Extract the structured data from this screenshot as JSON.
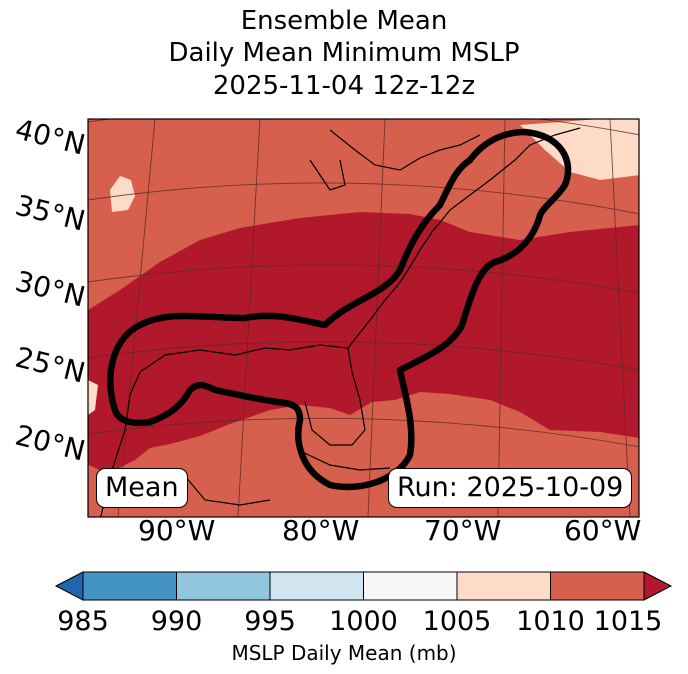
{
  "title_lines": [
    "Ensemble Mean",
    "Daily Mean Minimum MSLP",
    "2025-11-04 12z-12z"
  ],
  "lat_labels": [
    "40°N",
    "35°N",
    "30°N",
    "25°N",
    "20°N"
  ],
  "lon_labels": [
    "90°W",
    "80°W",
    "70°W",
    "60°W"
  ],
  "panel_left_label": "Mean",
  "panel_right_label": "Run: 2025-10-09",
  "colorbar": {
    "label": "MSLP Daily Mean (mb)",
    "ticks": [
      "985",
      "990",
      "995",
      "1000",
      "1005",
      "1010",
      "1015"
    ],
    "colors": [
      "#4393c3",
      "#92c5de",
      "#d1e5f0",
      "#f7f7f7",
      "#fddbc7",
      "#d6604d"
    ],
    "under_color": "#2166ac",
    "over_color": "#b2182b"
  },
  "field_colors": {
    "background_1010_1015": "#d6604d",
    "high_above_1015": "#b2182b",
    "patch_1005_1010": "#fddbc7"
  }
}
